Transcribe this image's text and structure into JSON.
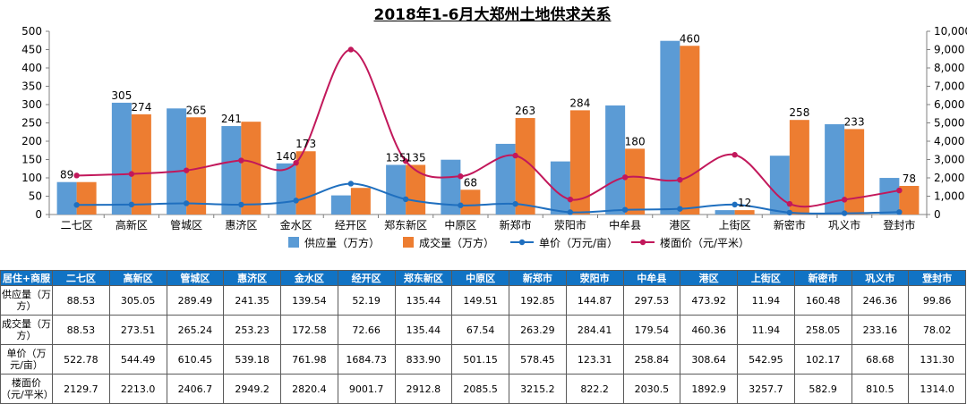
{
  "title": "2018年1-6月大郑州土地供求关系",
  "colors": {
    "supply": "#5b9bd5",
    "deal": "#ed7d31",
    "unit": "#1f6fbf",
    "floor": "#c2185b",
    "header_bg": "#1173c4"
  },
  "chart_data": {
    "type": "bar",
    "title": "2018年1-6月大郑州土地供求关系",
    "categories": [
      "二七区",
      "高新区",
      "管城区",
      "惠济区",
      "金水区",
      "经开区",
      "郑东新区",
      "中原区",
      "新郑市",
      "荥阳市",
      "中牟县",
      "港区",
      "上街区",
      "新密市",
      "巩义市",
      "登封市"
    ],
    "ylim": [
      0,
      500
    ],
    "y_ticks": [
      "0",
      "50",
      "100",
      "150",
      "200",
      "250",
      "300",
      "350",
      "400",
      "450",
      "500"
    ],
    "y2lim": [
      0,
      10000
    ],
    "y2_ticks": [
      "0",
      "1,000",
      "2,000",
      "3,000",
      "4,000",
      "5,000",
      "6,000",
      "7,000",
      "8,000",
      "9,000",
      "10,000"
    ],
    "series": [
      {
        "name": "供应量（万方）",
        "type": "bar",
        "axis": "left",
        "values": [
          88.53,
          305.05,
          289.49,
          241.35,
          139.54,
          52.19,
          135.44,
          149.51,
          192.85,
          144.87,
          297.53,
          473.92,
          11.94,
          160.48,
          246.36,
          99.86
        ]
      },
      {
        "name": "成交量（万方）",
        "type": "bar",
        "axis": "left",
        "values": [
          88.53,
          273.51,
          265.24,
          253.23,
          172.58,
          72.66,
          135.44,
          67.54,
          263.29,
          284.41,
          179.54,
          460.36,
          11.94,
          258.05,
          233.16,
          78.02
        ]
      },
      {
        "name": "单价（万元/亩）",
        "type": "line",
        "axis": "right",
        "values": [
          522.78,
          544.49,
          610.45,
          539.18,
          761.98,
          1684.73,
          833.9,
          501.15,
          578.45,
          123.31,
          258.84,
          308.64,
          542.95,
          102.17,
          68.68,
          131.3
        ]
      },
      {
        "name": "楼面价（元/平米）",
        "type": "line",
        "axis": "right",
        "values": [
          2129.7,
          2213.0,
          2406.7,
          2949.2,
          2820.4,
          9001.7,
          2912.8,
          2085.5,
          3215.2,
          822.2,
          2030.5,
          1892.9,
          3257.7,
          582.9,
          810.5,
          1314.0
        ]
      }
    ],
    "data_labels": [
      {
        "index": 0,
        "series": 0,
        "text": "89"
      },
      {
        "index": 1,
        "series": 0,
        "text": "305"
      },
      {
        "index": 1,
        "series": 1,
        "text": "274"
      },
      {
        "index": 2,
        "series": 1,
        "text": "265"
      },
      {
        "index": 3,
        "series": 0,
        "text": "241"
      },
      {
        "index": 4,
        "series": 0,
        "text": "140"
      },
      {
        "index": 4,
        "series": 1,
        "text": "173"
      },
      {
        "index": 6,
        "series": 0,
        "text": "135"
      },
      {
        "index": 6,
        "series": 1,
        "text": "135"
      },
      {
        "index": 7,
        "series": 1,
        "text": "68"
      },
      {
        "index": 8,
        "series": 1,
        "text": "263"
      },
      {
        "index": 9,
        "series": 1,
        "text": "284"
      },
      {
        "index": 10,
        "series": 1,
        "text": "180"
      },
      {
        "index": 11,
        "series": 1,
        "text": "460"
      },
      {
        "index": 12,
        "series": 1,
        "text": "12"
      },
      {
        "index": 13,
        "series": 1,
        "text": "258"
      },
      {
        "index": 14,
        "series": 1,
        "text": "233"
      },
      {
        "index": 15,
        "series": 1,
        "text": "78"
      }
    ],
    "legend_position": "bottom"
  },
  "table": {
    "corner": "居住+商服",
    "columns": [
      "二七区",
      "高新区",
      "管城区",
      "惠济区",
      "金水区",
      "经开区",
      "郑东新区",
      "中原区",
      "新郑市",
      "荥阳市",
      "中牟县",
      "港区",
      "上街区",
      "新密市",
      "巩义市",
      "登封市"
    ],
    "rows": [
      {
        "label": "供应量（万方）",
        "cells": [
          "88.53",
          "305.05",
          "289.49",
          "241.35",
          "139.54",
          "52.19",
          "135.44",
          "149.51",
          "192.85",
          "144.87",
          "297.53",
          "473.92",
          "11.94",
          "160.48",
          "246.36",
          "99.86"
        ]
      },
      {
        "label": "成交量（万方）",
        "cells": [
          "88.53",
          "273.51",
          "265.24",
          "253.23",
          "172.58",
          "72.66",
          "135.44",
          "67.54",
          "263.29",
          "284.41",
          "179.54",
          "460.36",
          "11.94",
          "258.05",
          "233.16",
          "78.02"
        ]
      },
      {
        "label": "单价（万元/亩）",
        "cells": [
          "522.78",
          "544.49",
          "610.45",
          "539.18",
          "761.98",
          "1684.73",
          "833.90",
          "501.15",
          "578.45",
          "123.31",
          "258.84",
          "308.64",
          "542.95",
          "102.17",
          "68.68",
          "131.30"
        ]
      },
      {
        "label": "楼面价（元/平米）",
        "cells": [
          "2129.7",
          "2213.0",
          "2406.7",
          "2949.2",
          "2820.4",
          "9001.7",
          "2912.8",
          "2085.5",
          "3215.2",
          "822.2",
          "2030.5",
          "1892.9",
          "3257.7",
          "582.9",
          "810.5",
          "1314.0"
        ]
      }
    ]
  }
}
